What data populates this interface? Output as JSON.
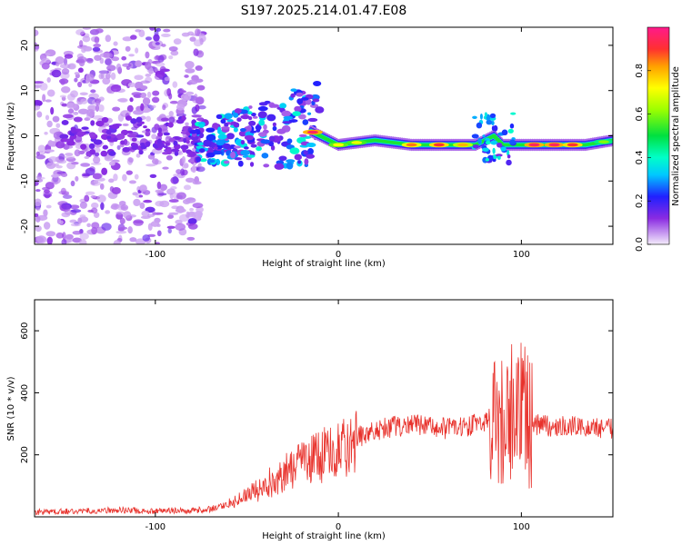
{
  "title": "S197.2025.214.01.47.E08",
  "chart_data": [
    {
      "type": "heatmap",
      "xlabel": "Height of straight line (km)",
      "ylabel": "Frequency (Hz)",
      "xlim": [
        -166,
        150
      ],
      "ylim": [
        -24,
        24
      ],
      "xticks": [
        -100,
        0,
        100
      ],
      "yticks": [
        -20,
        -10,
        0,
        10,
        20
      ],
      "colorbar": {
        "label": "Normalized spectral amplitude",
        "range": [
          0,
          1
        ],
        "ticks": [
          0.0,
          0.2,
          0.4,
          0.6,
          0.8
        ]
      },
      "regions": [
        {
          "x": [
            -166,
            -75
          ],
          "freq_spread": [
            -24,
            24
          ],
          "amplitude": "low"
        },
        {
          "x": [
            -75,
            -15
          ],
          "freq_spread": [
            -8,
            8
          ],
          "amplitude": "medium"
        },
        {
          "x": [
            -15,
            150
          ],
          "freq": -2,
          "amplitude": "high"
        }
      ],
      "ridge": {
        "x": [
          -15,
          0,
          20,
          40,
          60,
          75,
          80,
          85,
          90,
          100,
          110,
          120,
          135,
          150
        ],
        "y": [
          1,
          -2,
          -1,
          -2,
          -2,
          -2,
          -1,
          0,
          -2,
          -2,
          -2,
          -2,
          -2,
          -1
        ]
      }
    },
    {
      "type": "line",
      "xlabel": "Height of straight line (km)",
      "ylabel": "SNR (10 * v/v)",
      "xlim": [
        -166,
        150
      ],
      "ylim": [
        0,
        700
      ],
      "xticks": [
        -100,
        0,
        100
      ],
      "yticks": [
        200,
        400,
        600
      ],
      "series": [
        {
          "color": "#e8322c",
          "x": [
            -166,
            -140,
            -120,
            -100,
            -80,
            -70,
            -60,
            -50,
            -40,
            -30,
            -20,
            -10,
            0,
            10,
            20,
            30,
            40,
            50,
            60,
            70,
            75,
            80,
            85,
            90,
            95,
            100,
            105,
            110,
            120,
            130,
            140,
            150
          ],
          "y": [
            15,
            18,
            22,
            18,
            20,
            25,
            40,
            65,
            100,
            140,
            170,
            195,
            220,
            255,
            280,
            290,
            295,
            290,
            285,
            290,
            300,
            300,
            330,
            320,
            340,
            370,
            300,
            295,
            290,
            290,
            290,
            285
          ]
        }
      ]
    }
  ]
}
